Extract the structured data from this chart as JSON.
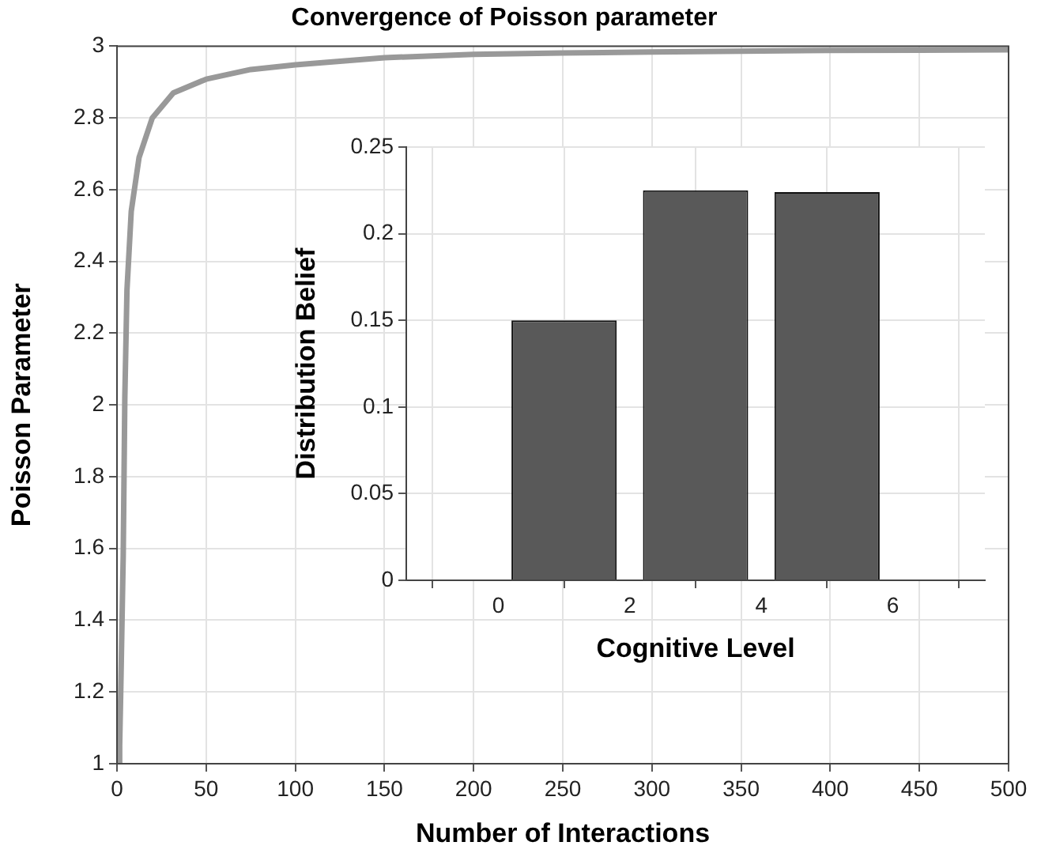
{
  "chart_data": [
    {
      "type": "line",
      "title": "Convergence of Poisson parameter",
      "xlabel": "Number of Interactions",
      "ylabel": "Poisson Parameter",
      "x": [
        1,
        1.5,
        2.1,
        3.5,
        4.4,
        5.6,
        8,
        12.4,
        19.8,
        31.6,
        50,
        75,
        100,
        150,
        200,
        250,
        300,
        350,
        400,
        450,
        500
      ],
      "series": [
        {
          "color": "#999999",
          "values": [
            1,
            1.05,
            1.2,
            1.58,
            2.02,
            2.32,
            2.54,
            2.69,
            2.8,
            2.87,
            2.908,
            2.935,
            2.948,
            2.968,
            2.977,
            2.981,
            2.984,
            2.986,
            2.988,
            2.989,
            2.99
          ]
        }
      ],
      "xlim": [
        0,
        500
      ],
      "ylim": [
        1,
        3
      ],
      "xticks": [
        0,
        50,
        100,
        150,
        200,
        250,
        300,
        350,
        400,
        450,
        500
      ],
      "yticks": [
        1,
        1.2,
        1.4,
        1.6,
        1.8,
        2,
        2.2,
        2.4,
        2.6,
        2.8,
        3
      ],
      "grid": true,
      "marker": "none",
      "line_style": "solid"
    },
    {
      "type": "bar",
      "xlabel": "Cognitive Level",
      "ylabel": "Distribution Belief",
      "x": [
        1,
        3,
        5
      ],
      "series": [
        {
          "color": "#595959",
          "values": [
            0.15,
            0.225,
            0.224
          ]
        }
      ],
      "xlim": [
        -1.4,
        7.4
      ],
      "ylim": [
        0,
        0.25
      ],
      "xticks": [
        0,
        2,
        4,
        6
      ],
      "yticks": [
        0,
        0.05,
        0.1,
        0.15,
        0.2,
        0.25
      ],
      "grid": true
    }
  ]
}
